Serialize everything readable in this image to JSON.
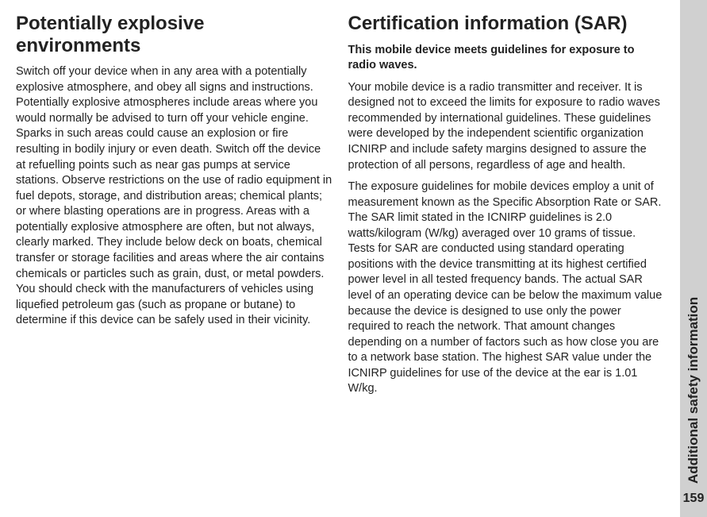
{
  "leftColumn": {
    "heading": "Potentially explosive environments",
    "body": "Switch off your device when in any area with a potentially explosive atmosphere, and obey all signs and instructions. Potentially explosive atmospheres include areas where you would normally be advised to turn off your vehicle engine. Sparks in such areas could cause an explosion or fire resulting in bodily injury or even death. Switch off the device at refuelling points such as near gas pumps at service stations. Observe restrictions on the use of radio equipment in fuel depots, storage, and distribution areas; chemical plants; or where blasting operations are in progress. Areas with a potentially explosive atmosphere are often, but not always, clearly marked. They include below deck on boats, chemical transfer or storage facilities and areas where the air contains chemicals or particles such as grain, dust, or metal powders. You should check with the manufacturers of vehicles using liquefied petroleum gas (such as propane or butane) to determine if this device can be safely used in their vicinity."
  },
  "rightColumn": {
    "heading": "Certification information (SAR)",
    "boldIntro": "This mobile device meets guidelines for exposure to radio waves.",
    "para1": "Your mobile device is a radio transmitter and receiver. It is designed not to exceed the limits for exposure to radio waves recommended by international guidelines. These guidelines were developed by the independent scientific organization ICNIRP and include safety margins designed to assure the protection of all persons, regardless of age and health.",
    "para2": "The exposure guidelines for mobile devices employ a unit of measurement known as the Specific Absorption Rate or SAR. The SAR limit stated in the ICNIRP guidelines is 2.0 watts/kilogram (W/kg) averaged over 10 grams of tissue. Tests for SAR are conducted using standard operating positions with the device transmitting at its highest certified power level in all tested frequency bands. The actual SAR level of an operating device can be below the maximum value because the device is designed to use only the power required to reach the network. That amount changes depending on a number of factors such as how close you are to a network base station. The highest SAR value under the ICNIRP guidelines for use of the device at the ear is 1.01 W/kg."
  },
  "sideTab": {
    "label": "Additional safety information",
    "pageNumber": "159"
  }
}
